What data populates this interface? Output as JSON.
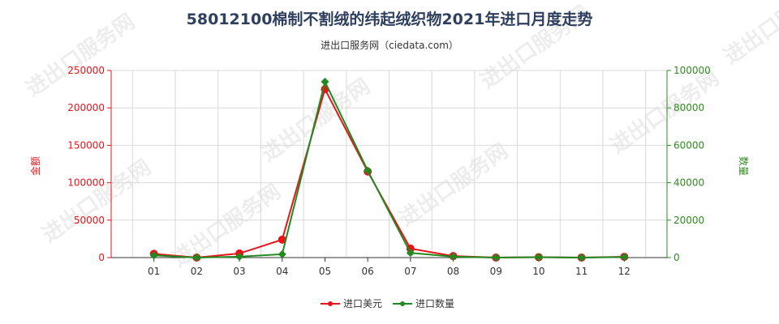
{
  "watermark": "进出口服务网",
  "chart_data": {
    "type": "line",
    "title": "58012100棉制不割绒的纬起绒织物2021年进口月度走势",
    "subtitle": "进出口服务网（ciedata.com）",
    "categories": [
      "01",
      "02",
      "03",
      "04",
      "05",
      "06",
      "07",
      "08",
      "09",
      "10",
      "11",
      "12"
    ],
    "y_left": {
      "label": "金额",
      "range": [
        0,
        250000
      ],
      "ticks": [
        0,
        50000,
        100000,
        150000,
        200000,
        250000
      ],
      "color": "#e8141b"
    },
    "y_right": {
      "label": "数量",
      "range": [
        0,
        100000
      ],
      "ticks": [
        0,
        20000,
        40000,
        60000,
        80000,
        100000
      ],
      "color": "#2e8b1e"
    },
    "grid": true,
    "legend_position": "bottom-center",
    "series": [
      {
        "name": "进口美元",
        "axis": "left",
        "color": "#e8141b",
        "values": [
          5000,
          0,
          5500,
          24000,
          225000,
          115000,
          12000,
          2000,
          0,
          500,
          0,
          1000
        ]
      },
      {
        "name": "进口数量",
        "axis": "right",
        "color": "#1f8a1f",
        "values": [
          1200,
          0,
          500,
          1800,
          94000,
          46500,
          2500,
          500,
          0,
          200,
          0,
          300
        ]
      }
    ]
  }
}
